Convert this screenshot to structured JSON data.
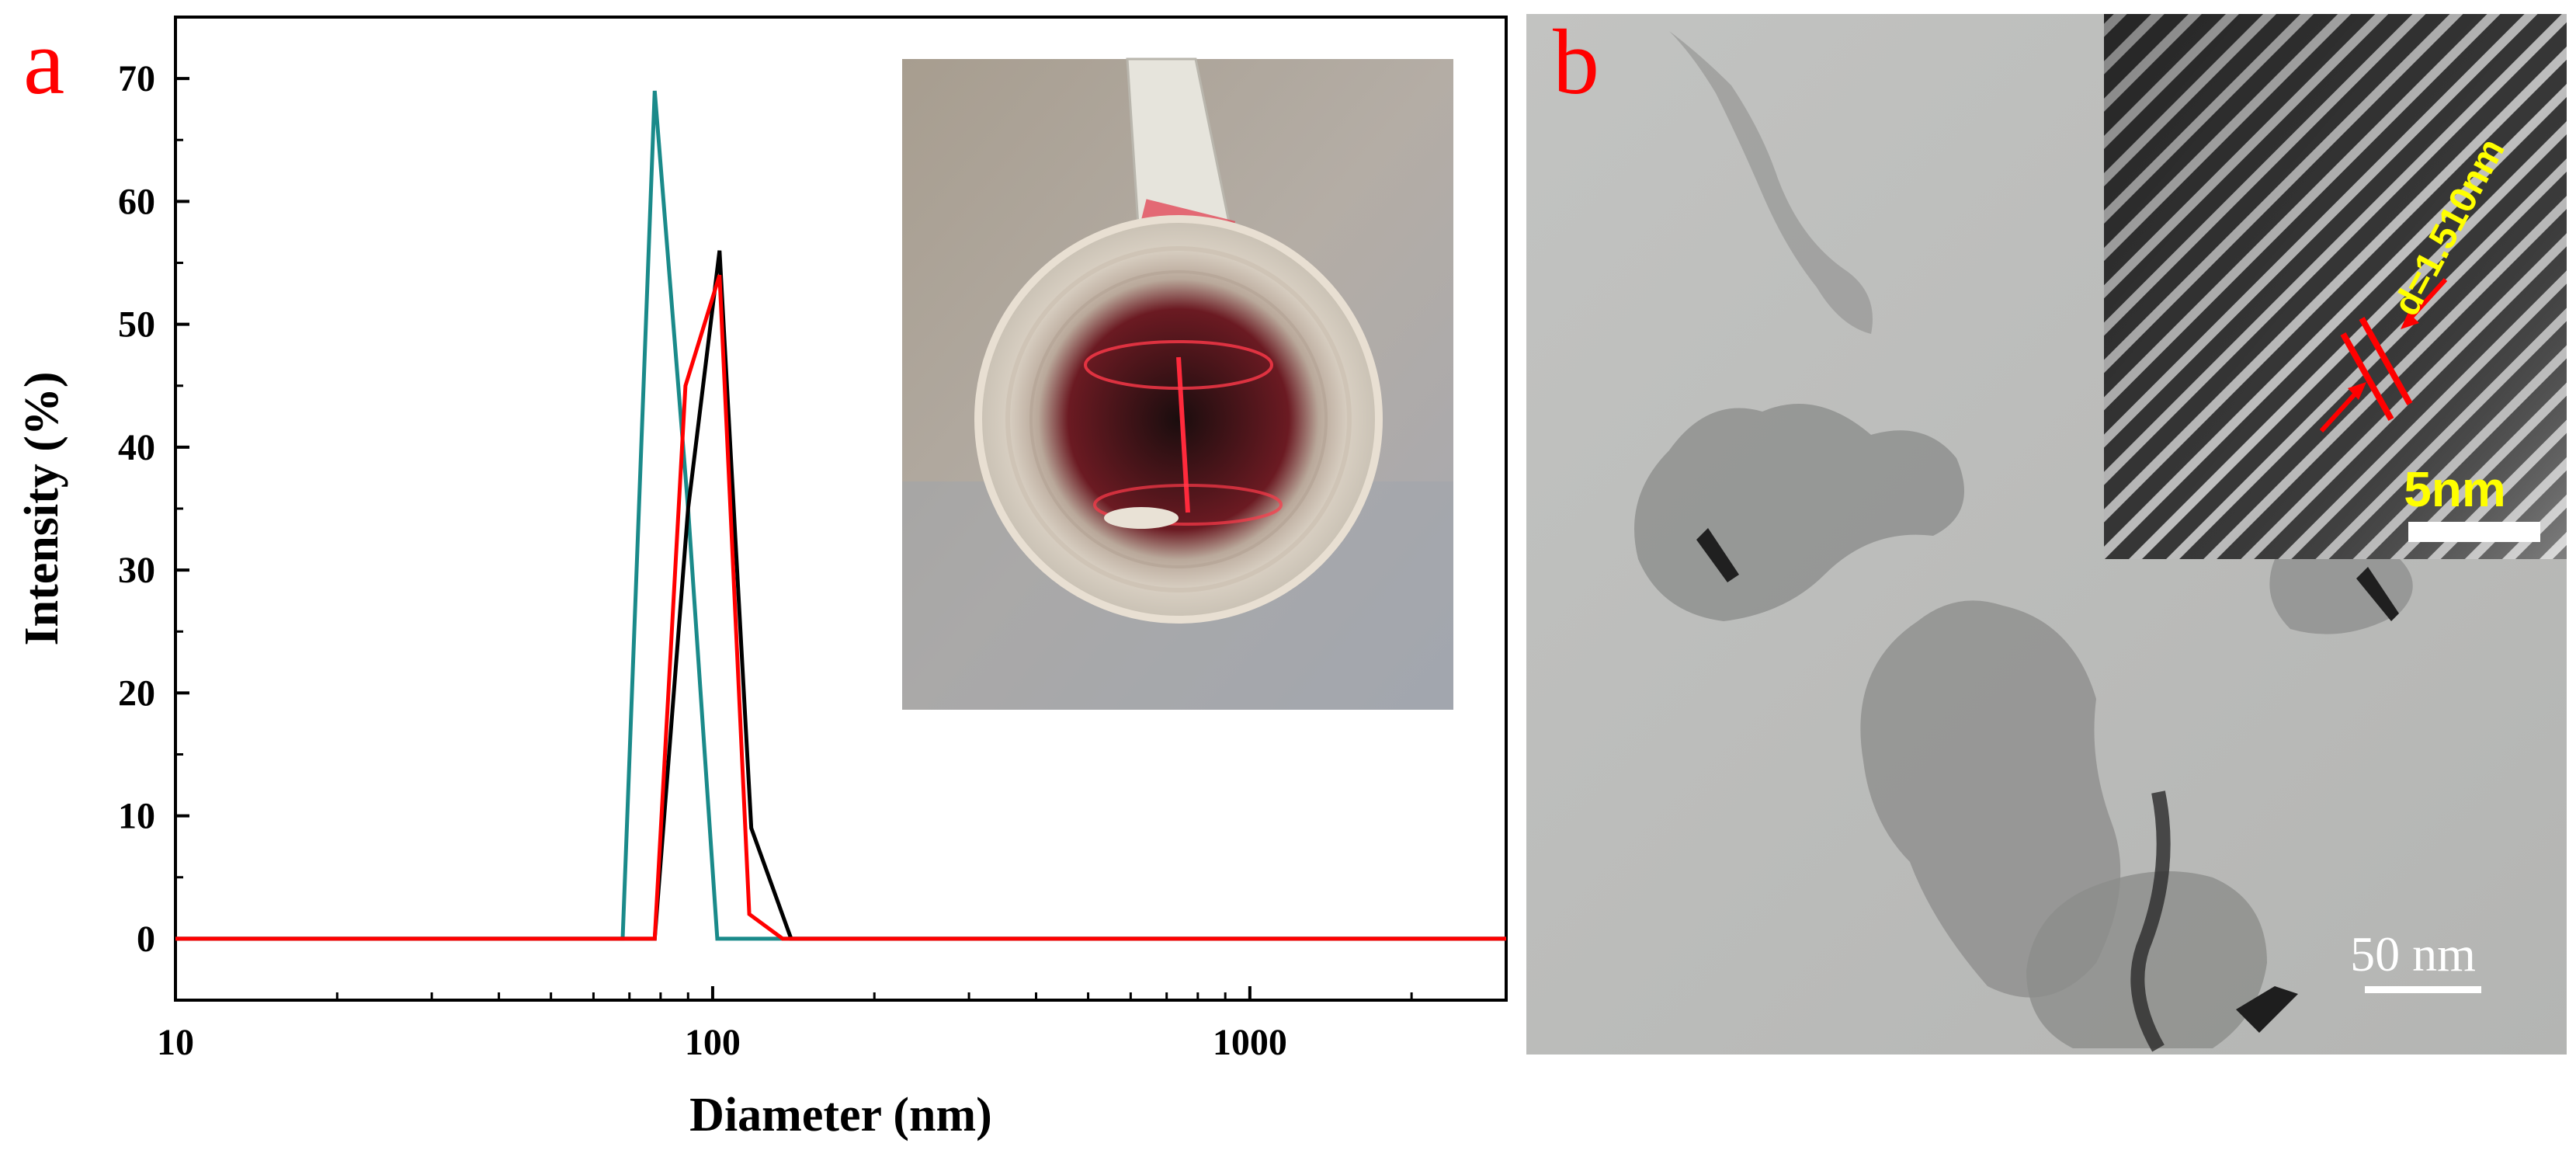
{
  "panels": {
    "a_label": "a",
    "b_label": "b"
  },
  "chart_data": {
    "type": "line",
    "xlabel": "Diameter (nm)",
    "ylabel": "Intensity (%)",
    "xscale": "log",
    "xlim": [
      10,
      3000
    ],
    "ylim": [
      -5,
      75
    ],
    "xticks": [
      10,
      100,
      1000
    ],
    "xtick_labels": [
      "10",
      "100",
      "1000"
    ],
    "yticks": [
      0,
      10,
      20,
      30,
      40,
      50,
      60,
      70
    ],
    "ytick_labels": [
      "0",
      "10",
      "20",
      "30",
      "40",
      "50",
      "60",
      "70"
    ],
    "grid": false,
    "legend": "none",
    "series": [
      {
        "color": "#1a8a8a",
        "points": [
          [
            10,
            0
          ],
          [
            68,
            0
          ],
          [
            78,
            69
          ],
          [
            90,
            35
          ],
          [
            102,
            0
          ],
          [
            3000,
            0
          ]
        ]
      },
      {
        "color": "#000000",
        "points": [
          [
            10,
            0
          ],
          [
            78,
            0
          ],
          [
            90,
            35
          ],
          [
            103,
            56
          ],
          [
            118,
            9
          ],
          [
            140,
            0
          ],
          [
            3000,
            0
          ]
        ]
      },
      {
        "color": "#ff0000",
        "points": [
          [
            10,
            0
          ],
          [
            78,
            0
          ],
          [
            89,
            45
          ],
          [
            103,
            54
          ],
          [
            117,
            2
          ],
          [
            135,
            0
          ],
          [
            3000,
            0
          ]
        ]
      }
    ]
  },
  "tem_inset": {
    "spacing_label": "d=1.510nm",
    "scalebar_label": "5nm"
  },
  "tem_main": {
    "scalebar_label": "50 nm"
  },
  "colors": {
    "panel_letter": "#ff0000",
    "inset_text": "#ffff00",
    "arrow": "#ff0000"
  }
}
